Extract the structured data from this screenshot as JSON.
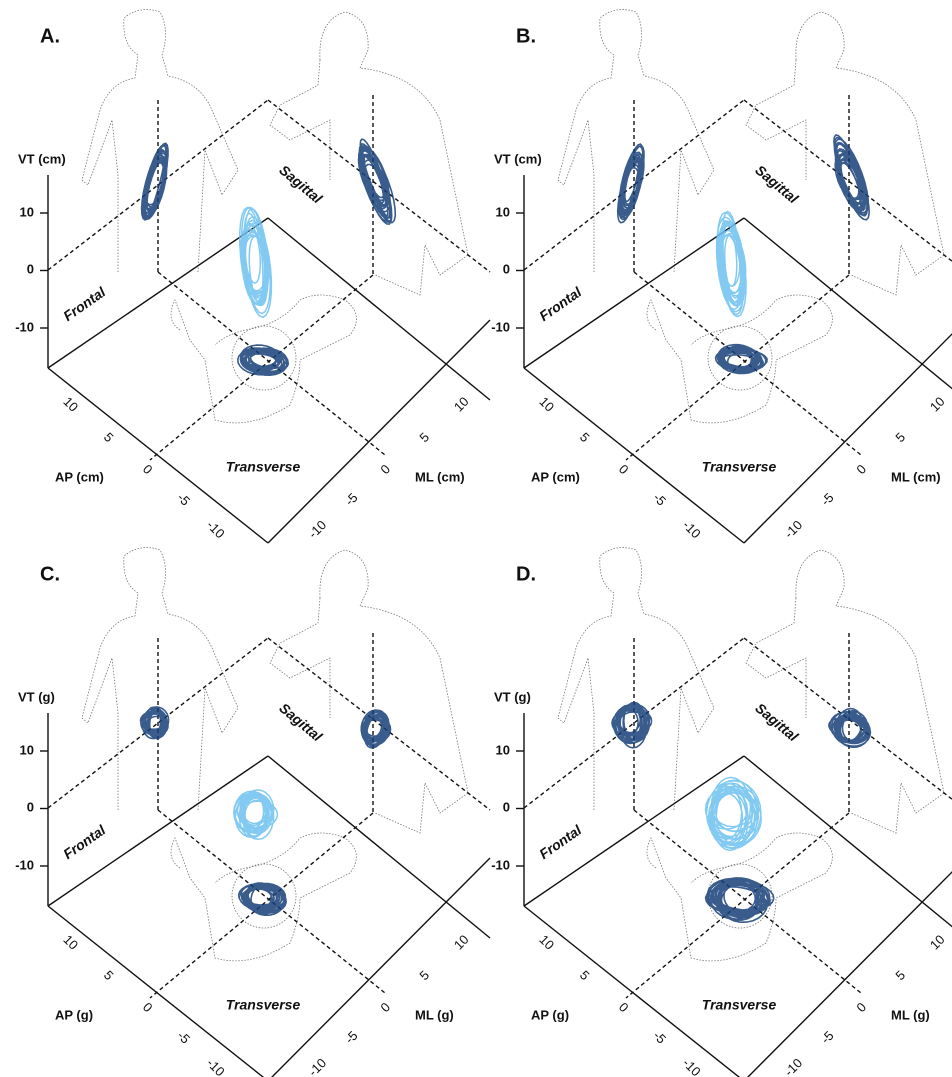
{
  "panels": [
    {
      "label": "A.",
      "vt_axis": {
        "label": "VT (cm)",
        "ticks": [
          "10",
          "0",
          "-10"
        ]
      },
      "ap_axis": {
        "label": "AP (cm)",
        "ticks": [
          "10",
          "5",
          "0",
          "-5",
          "-10"
        ]
      },
      "ml_axis": {
        "label": "ML (cm)",
        "ticks": [
          "-10",
          "-5",
          "0",
          "5",
          "10"
        ]
      },
      "planes": {
        "frontal": "Frontal",
        "sagittal": "Sagittal",
        "transverse": "Transverse"
      }
    },
    {
      "label": "B.",
      "vt_axis": {
        "label": "VT (cm)",
        "ticks": [
          "10",
          "0",
          "-10"
        ]
      },
      "ap_axis": {
        "label": "AP (cm)",
        "ticks": [
          "10",
          "5",
          "0",
          "-5",
          "-10"
        ]
      },
      "ml_axis": {
        "label": "ML (cm)",
        "ticks": [
          "-10",
          "-5",
          "0",
          "5",
          "10"
        ]
      },
      "planes": {
        "frontal": "Frontal",
        "sagittal": "Sagittal",
        "transverse": "Transverse"
      }
    },
    {
      "label": "C.",
      "vt_axis": {
        "label": "VT (g)",
        "ticks": [
          "10",
          "0",
          "-10"
        ]
      },
      "ap_axis": {
        "label": "AP (g)",
        "ticks": [
          "10",
          "5",
          "0",
          "-5",
          "-10"
        ]
      },
      "ml_axis": {
        "label": "ML (g)",
        "ticks": [
          "-10",
          "-5",
          "0",
          "5",
          "10"
        ]
      },
      "planes": {
        "frontal": "Frontal",
        "sagittal": "Sagittal",
        "transverse": "Transverse"
      }
    },
    {
      "label": "D.",
      "vt_axis": {
        "label": "VT (g)",
        "ticks": [
          "10",
          "0",
          "-10"
        ]
      },
      "ap_axis": {
        "label": "AP (g)",
        "ticks": [
          "10",
          "5",
          "0",
          "-5",
          "-10"
        ]
      },
      "ml_axis": {
        "label": "ML (g)",
        "ticks": [
          "-10",
          "-5",
          "0",
          "5",
          "10"
        ]
      },
      "planes": {
        "frontal": "Frontal",
        "sagittal": "Sagittal",
        "transverse": "Transverse"
      }
    }
  ]
}
